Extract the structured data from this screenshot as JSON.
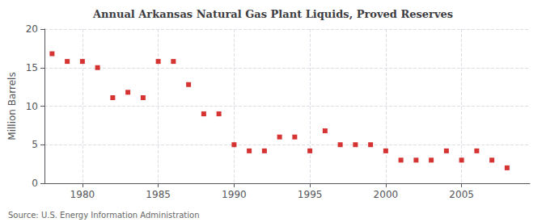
{
  "chart_data": {
    "type": "scatter",
    "title": "Annual Arkansas Natural Gas Plant Liquids, Proved Reserves",
    "ylabel": "Million Barrels",
    "annotations": [
      "Source: U.S. Energy Information Administration"
    ],
    "x": [
      1978,
      1979,
      1980,
      1981,
      1982,
      1983,
      1984,
      1985,
      1986,
      1987,
      1988,
      1989,
      1990,
      1991,
      1992,
      1993,
      1994,
      1995,
      1996,
      1997,
      1998,
      1999,
      2000,
      2001,
      2002,
      2003,
      2004,
      2005,
      2006,
      2007,
      2008
    ],
    "values": [
      16.8,
      15.8,
      15.8,
      15.0,
      11.1,
      11.8,
      11.1,
      15.8,
      15.8,
      12.8,
      9.0,
      9.0,
      5.0,
      4.2,
      4.2,
      6.0,
      6.0,
      4.2,
      6.8,
      5.0,
      5.0,
      5.0,
      4.2,
      3.0,
      3.0,
      3.0,
      4.2,
      3.0,
      4.2,
      3.0,
      2.0
    ],
    "color": "#cc0000",
    "marker": "square",
    "xlim": [
      1977.5,
      2009.5
    ],
    "ylim": [
      0,
      20
    ],
    "xticks": [
      1980,
      1985,
      1990,
      1995,
      2000,
      2005
    ],
    "yticks": [
      0,
      5,
      10,
      15,
      20
    ],
    "grid": true
  }
}
